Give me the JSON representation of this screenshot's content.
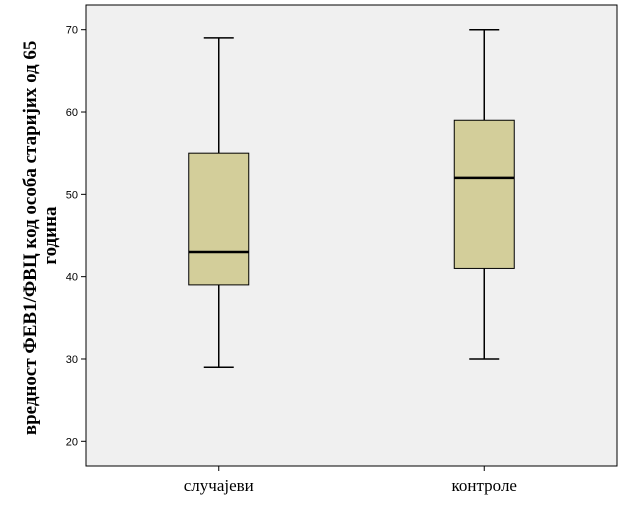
{
  "chart_data": {
    "type": "boxplot",
    "title": "",
    "xlabel": "",
    "ylabel_lines": [
      "вредност ФЕВ1/ФВЦ код особа старијих од 65",
      "година"
    ],
    "ylim": [
      17,
      73
    ],
    "yticks": [
      20,
      30,
      40,
      50,
      60,
      70
    ],
    "grid": false,
    "plot_background": "#f0f0f0",
    "box_color": "#d3ce9a",
    "categories": [
      "случајеви",
      "контроле"
    ],
    "boxes": [
      {
        "category": "случајеви",
        "min": 29,
        "q1": 39,
        "median": 43,
        "q3": 55,
        "max": 69
      },
      {
        "category": "контроле",
        "min": 30,
        "q1": 41,
        "median": 52,
        "q3": 59,
        "max": 70
      }
    ]
  }
}
